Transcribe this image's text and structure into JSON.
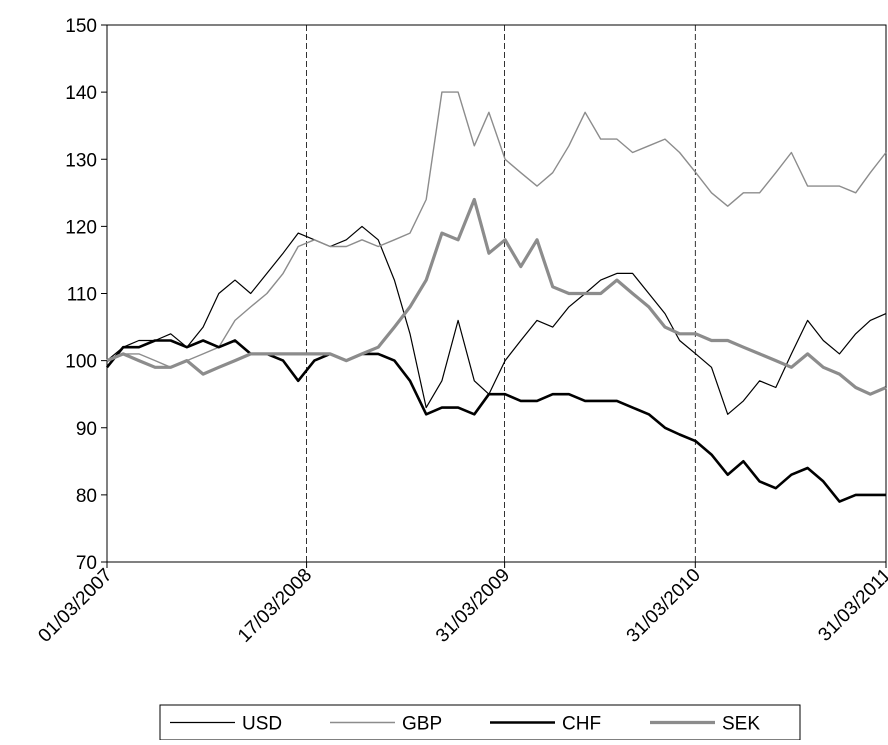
{
  "chart_data": {
    "type": "line",
    "x": [
      "2007-03-01",
      "2007-04-01",
      "2007-05-01",
      "2007-06-01",
      "2007-07-01",
      "2007-08-01",
      "2007-09-01",
      "2007-10-01",
      "2007-11-01",
      "2007-12-01",
      "2008-01-01",
      "2008-02-01",
      "2008-03-01",
      "2008-04-01",
      "2008-05-01",
      "2008-06-01",
      "2008-07-01",
      "2008-08-01",
      "2008-09-01",
      "2008-10-01",
      "2008-11-01",
      "2008-12-01",
      "2009-01-01",
      "2009-02-01",
      "2009-03-01",
      "2009-04-01",
      "2009-05-01",
      "2009-06-01",
      "2009-07-01",
      "2009-08-01",
      "2009-09-01",
      "2009-10-01",
      "2009-11-01",
      "2009-12-01",
      "2010-01-01",
      "2010-02-01",
      "2010-03-01",
      "2010-04-01",
      "2010-05-01",
      "2010-06-01",
      "2010-07-01",
      "2010-08-01",
      "2010-09-01",
      "2010-10-01",
      "2010-11-01",
      "2010-12-01",
      "2011-01-01",
      "2011-02-01",
      "2011-03-01",
      "2011-03-31"
    ],
    "series": [
      {
        "name": "USD",
        "color": "#000000",
        "width": 1.2,
        "values": [
          100,
          102,
          103,
          103,
          104,
          102,
          105,
          110,
          112,
          110,
          113,
          116,
          119,
          118,
          117,
          118,
          120,
          118,
          112,
          104,
          93,
          97,
          106,
          97,
          95,
          100,
          103,
          106,
          105,
          108,
          110,
          112,
          113,
          113,
          110,
          107,
          103,
          101,
          99,
          92,
          94,
          97,
          96,
          101,
          106,
          103,
          101,
          104,
          106,
          107
        ]
      },
      {
        "name": "GBP",
        "color": "#8c8c8c",
        "width": 1.4,
        "values": [
          100,
          101,
          101,
          100,
          99,
          100,
          101,
          102,
          106,
          108,
          110,
          113,
          117,
          118,
          117,
          117,
          118,
          117,
          118,
          119,
          124,
          140,
          140,
          132,
          137,
          130,
          128,
          126,
          128,
          132,
          137,
          133,
          133,
          131,
          132,
          133,
          131,
          128,
          125,
          123,
          125,
          125,
          128,
          131,
          126,
          126,
          126,
          125,
          128,
          131
        ]
      },
      {
        "name": "CHF",
        "color": "#000000",
        "width": 2.6,
        "values": [
          99,
          102,
          102,
          103,
          103,
          102,
          103,
          102,
          103,
          101,
          101,
          100,
          97,
          100,
          101,
          100,
          101,
          101,
          100,
          97,
          92,
          93,
          93,
          92,
          95,
          95,
          94,
          94,
          95,
          95,
          94,
          94,
          94,
          93,
          92,
          90,
          89,
          88,
          86,
          83,
          85,
          82,
          81,
          83,
          84,
          82,
          79,
          80,
          80,
          80
        ]
      },
      {
        "name": "SEK",
        "color": "#8c8c8c",
        "width": 3.2,
        "values": [
          100,
          101,
          100,
          99,
          99,
          100,
          98,
          99,
          100,
          101,
          101,
          101,
          101,
          101,
          101,
          100,
          101,
          102,
          105,
          108,
          112,
          119,
          118,
          124,
          116,
          118,
          114,
          118,
          111,
          110,
          110,
          110,
          112,
          110,
          108,
          105,
          104,
          104,
          103,
          103,
          102,
          101,
          100,
          99,
          101,
          99,
          98,
          96,
          95,
          96
        ]
      }
    ],
    "xlim": [
      "2007-03-01",
      "2011-03-31"
    ],
    "xticks": [
      {
        "value": "2007-03-01",
        "label": "01/03/2007"
      },
      {
        "value": "2008-03-17",
        "label": "17/03/2008"
      },
      {
        "value": "2009-03-31",
        "label": "31/03/2009"
      },
      {
        "value": "2010-03-31",
        "label": "31/03/2010"
      },
      {
        "value": "2011-03-31",
        "label": "31/03/2011"
      }
    ],
    "ylim": [
      70,
      150
    ],
    "yticks": [
      70,
      80,
      90,
      100,
      110,
      120,
      130,
      140,
      150
    ],
    "xgrid": true,
    "legend": "bottom"
  }
}
